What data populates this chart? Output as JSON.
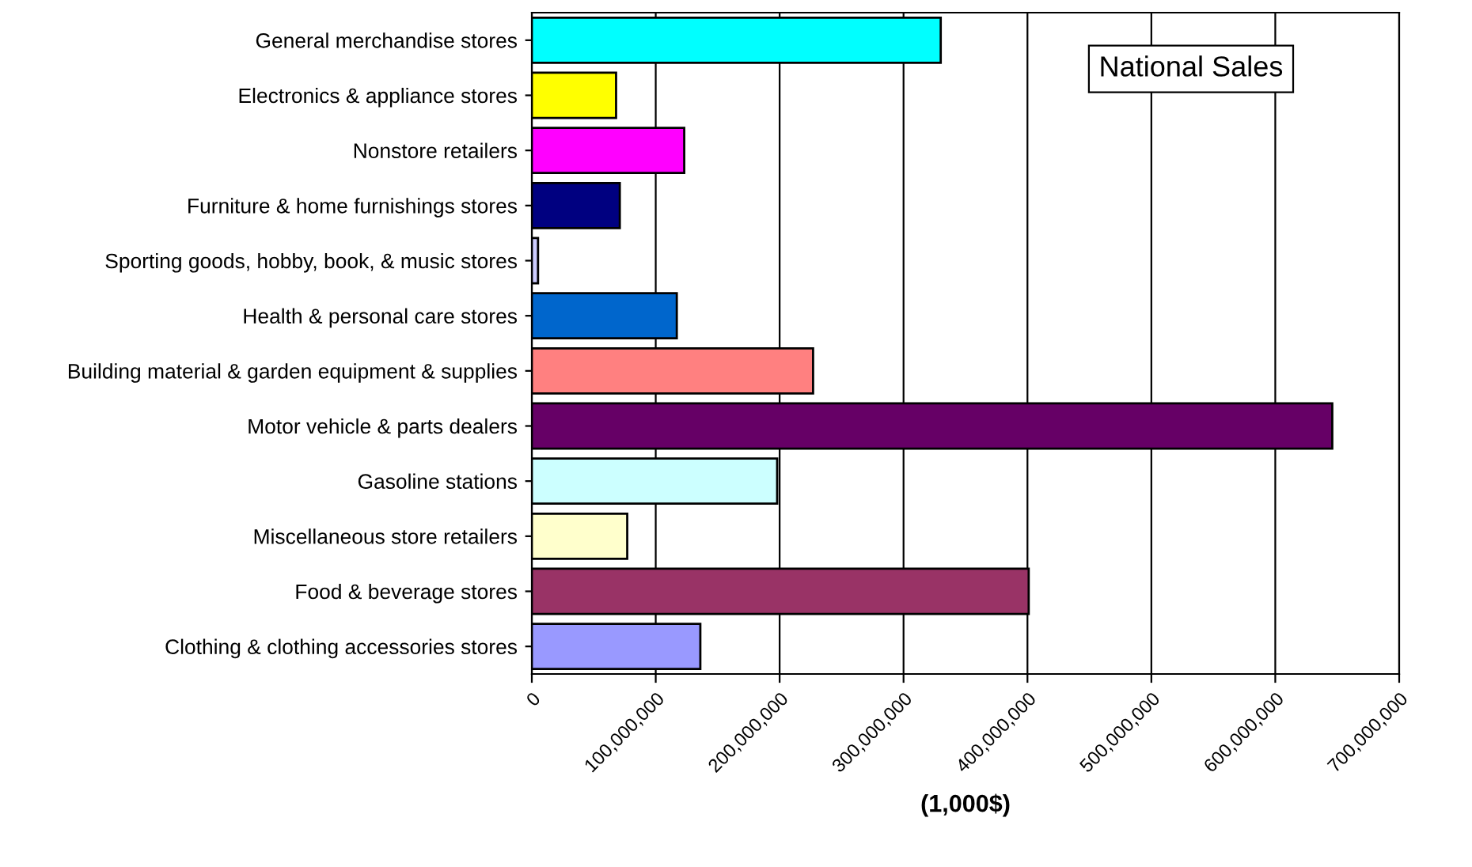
{
  "chart_data": {
    "type": "bar",
    "orientation": "horizontal",
    "xlabel": "(1,000$)",
    "annotations": [
      "National Sales"
    ],
    "categories": [
      "General merchandise stores",
      "Electronics & appliance stores",
      "Nonstore retailers",
      "Furniture & home furnishings stores",
      "Sporting goods, hobby, book, & music stores",
      "Health & personal care stores",
      "Building material & garden equipment & supplies",
      "Motor vehicle & parts dealers",
      "Gasoline stations",
      "Miscellaneous store retailers",
      "Food & beverage stores",
      "Clothing & clothing accessories stores"
    ],
    "values": [
      330000000,
      68000000,
      123000000,
      71000000,
      5000000,
      117000000,
      227000000,
      646000000,
      198000000,
      77000000,
      401000000,
      136000000
    ],
    "colors": [
      "#00ffff",
      "#ffff00",
      "#ff00ff",
      "#000080",
      "#ccccff",
      "#0066cc",
      "#ff8080",
      "#660066",
      "#ccffff",
      "#ffffcc",
      "#993366",
      "#9999ff"
    ],
    "xlim": [
      0,
      700000000
    ],
    "xticks": [
      {
        "value": 0,
        "label": "0"
      },
      {
        "value": 100000000,
        "label": "100,000,000"
      },
      {
        "value": 200000000,
        "label": "200,000,000"
      },
      {
        "value": 300000000,
        "label": "300,000,000"
      },
      {
        "value": 400000000,
        "label": "400,000,000"
      },
      {
        "value": 500000000,
        "label": "500,000,000"
      },
      {
        "value": 600000000,
        "label": "600,000,000"
      },
      {
        "value": 700000000,
        "label": "700,000,000"
      }
    ],
    "grid": "x",
    "legend": false
  }
}
